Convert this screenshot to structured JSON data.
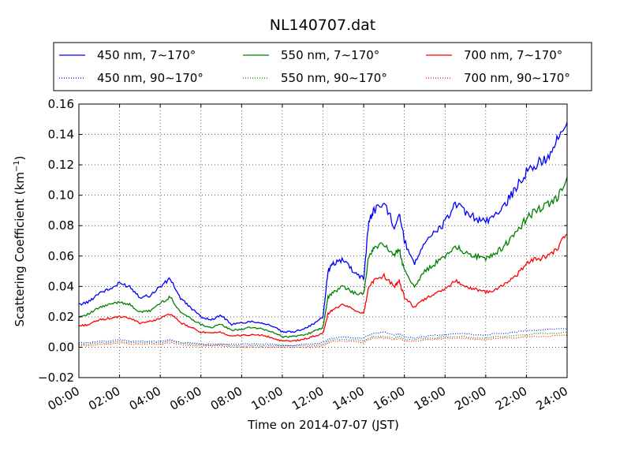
{
  "chart_data": {
    "type": "line",
    "title": "NL140707.dat",
    "xlabel": "Time on 2014-07-07 (JST)",
    "ylabel": "Scattering Coefficient (km",
    "ylabel_sup": "−1",
    "ylabel_end": ")",
    "x_unit": "hours",
    "xlim": [
      0,
      24
    ],
    "ylim": [
      -0.02,
      0.16
    ],
    "grid": true,
    "legend_placement": "top",
    "x_ticks": [
      {
        "v": 0,
        "label": "00:00"
      },
      {
        "v": 2,
        "label": "02:00"
      },
      {
        "v": 4,
        "label": "04:00"
      },
      {
        "v": 6,
        "label": "06:00"
      },
      {
        "v": 8,
        "label": "08:00"
      },
      {
        "v": 10,
        "label": "10:00"
      },
      {
        "v": 12,
        "label": "12:00"
      },
      {
        "v": 14,
        "label": "14:00"
      },
      {
        "v": 16,
        "label": "16:00"
      },
      {
        "v": 18,
        "label": "18:00"
      },
      {
        "v": 20,
        "label": "20:00"
      },
      {
        "v": 22,
        "label": "22:00"
      },
      {
        "v": 24,
        "label": "24:00"
      }
    ],
    "y_ticks": [
      {
        "v": -0.02,
        "label": "−0.02"
      },
      {
        "v": 0.0,
        "label": "0.00"
      },
      {
        "v": 0.02,
        "label": "0.02"
      },
      {
        "v": 0.04,
        "label": "0.04"
      },
      {
        "v": 0.06,
        "label": "0.06"
      },
      {
        "v": 0.08,
        "label": "0.08"
      },
      {
        "v": 0.1,
        "label": "0.10"
      },
      {
        "v": 0.12,
        "label": "0.12"
      },
      {
        "v": 0.14,
        "label": "0.14"
      },
      {
        "v": 0.16,
        "label": "0.16"
      }
    ],
    "x": [
      0,
      0.5,
      1,
      1.5,
      2,
      2.5,
      3,
      3.5,
      4,
      4.5,
      5,
      5.5,
      6,
      6.5,
      7,
      7.5,
      8,
      8.5,
      9,
      9.5,
      10,
      10.5,
      11,
      11.5,
      12,
      12.25,
      12.5,
      13,
      13.5,
      14,
      14.25,
      14.5,
      15,
      15.5,
      15.75,
      16,
      16.5,
      17,
      17.5,
      18,
      18.5,
      19,
      19.5,
      20,
      20.5,
      21,
      21.5,
      22,
      22.5,
      23,
      23.5,
      24
    ],
    "series": [
      {
        "name": "450 nm, 7∼170°",
        "color": "#0000ff",
        "style": "solid",
        "values": [
          0.028,
          0.03,
          0.036,
          0.038,
          0.042,
          0.04,
          0.033,
          0.034,
          0.04,
          0.045,
          0.032,
          0.026,
          0.02,
          0.018,
          0.021,
          0.015,
          0.016,
          0.017,
          0.016,
          0.014,
          0.01,
          0.01,
          0.012,
          0.015,
          0.02,
          0.05,
          0.055,
          0.058,
          0.05,
          0.045,
          0.083,
          0.09,
          0.095,
          0.08,
          0.088,
          0.07,
          0.055,
          0.07,
          0.075,
          0.082,
          0.095,
          0.088,
          0.085,
          0.082,
          0.088,
          0.095,
          0.105,
          0.115,
          0.12,
          0.125,
          0.135,
          0.148
        ]
      },
      {
        "name": "550 nm, 7∼170°",
        "color": "#008000",
        "style": "solid",
        "values": [
          0.02,
          0.022,
          0.026,
          0.028,
          0.03,
          0.028,
          0.023,
          0.024,
          0.029,
          0.033,
          0.023,
          0.019,
          0.015,
          0.013,
          0.015,
          0.011,
          0.012,
          0.013,
          0.012,
          0.01,
          0.007,
          0.007,
          0.008,
          0.01,
          0.013,
          0.033,
          0.036,
          0.04,
          0.036,
          0.035,
          0.06,
          0.065,
          0.068,
          0.06,
          0.065,
          0.05,
          0.04,
          0.05,
          0.055,
          0.06,
          0.067,
          0.062,
          0.06,
          0.058,
          0.062,
          0.068,
          0.075,
          0.085,
          0.09,
          0.093,
          0.098,
          0.112
        ]
      },
      {
        "name": "700 nm, 7∼170°",
        "color": "#ff0000",
        "style": "solid",
        "values": [
          0.014,
          0.015,
          0.018,
          0.019,
          0.02,
          0.019,
          0.016,
          0.017,
          0.019,
          0.022,
          0.016,
          0.013,
          0.01,
          0.009,
          0.01,
          0.007,
          0.008,
          0.008,
          0.008,
          0.006,
          0.004,
          0.004,
          0.005,
          0.007,
          0.009,
          0.022,
          0.025,
          0.028,
          0.025,
          0.022,
          0.04,
          0.044,
          0.047,
          0.04,
          0.043,
          0.033,
          0.026,
          0.032,
          0.035,
          0.038,
          0.044,
          0.04,
          0.038,
          0.036,
          0.038,
          0.042,
          0.047,
          0.055,
          0.058,
          0.06,
          0.065,
          0.074
        ]
      },
      {
        "name": "450 nm, 90∼170°",
        "color": "#0000ff",
        "style": "dotted",
        "values": [
          0.003,
          0.003,
          0.004,
          0.004,
          0.005,
          0.004,
          0.004,
          0.004,
          0.004,
          0.005,
          0.003,
          0.003,
          0.002,
          0.002,
          0.002,
          0.002,
          0.002,
          0.002,
          0.002,
          0.002,
          0.001,
          0.001,
          0.002,
          0.002,
          0.003,
          0.005,
          0.006,
          0.007,
          0.006,
          0.006,
          0.008,
          0.009,
          0.01,
          0.008,
          0.009,
          0.007,
          0.006,
          0.007,
          0.008,
          0.008,
          0.009,
          0.009,
          0.008,
          0.008,
          0.009,
          0.009,
          0.01,
          0.011,
          0.011,
          0.012,
          0.012,
          0.012
        ]
      },
      {
        "name": "550 nm, 90∼170°",
        "color": "#008000",
        "style": "dotted",
        "values": [
          0.002,
          0.002,
          0.003,
          0.003,
          0.004,
          0.003,
          0.003,
          0.003,
          0.003,
          0.004,
          0.003,
          0.002,
          0.002,
          0.001,
          0.002,
          0.001,
          0.001,
          0.001,
          0.001,
          0.001,
          0.001,
          0.001,
          0.001,
          0.001,
          0.002,
          0.004,
          0.005,
          0.005,
          0.005,
          0.004,
          0.006,
          0.007,
          0.007,
          0.006,
          0.007,
          0.005,
          0.005,
          0.006,
          0.006,
          0.007,
          0.007,
          0.007,
          0.006,
          0.006,
          0.007,
          0.007,
          0.008,
          0.008,
          0.009,
          0.009,
          0.009,
          0.01
        ]
      },
      {
        "name": "700 nm, 90∼170°",
        "color": "#ff0000",
        "style": "dotted",
        "values": [
          0.001,
          0.001,
          0.002,
          0.002,
          0.003,
          0.002,
          0.002,
          0.002,
          0.002,
          0.003,
          0.002,
          0.001,
          0.001,
          0.001,
          0.001,
          0.0,
          0.0,
          0.0,
          0.0,
          0.0,
          0.0,
          0.0,
          0.0,
          0.0,
          0.001,
          0.003,
          0.004,
          0.004,
          0.004,
          0.003,
          0.005,
          0.006,
          0.006,
          0.005,
          0.006,
          0.004,
          0.004,
          0.005,
          0.005,
          0.006,
          0.006,
          0.006,
          0.005,
          0.005,
          0.006,
          0.006,
          0.006,
          0.007,
          0.007,
          0.007,
          0.008,
          0.008
        ]
      }
    ]
  }
}
